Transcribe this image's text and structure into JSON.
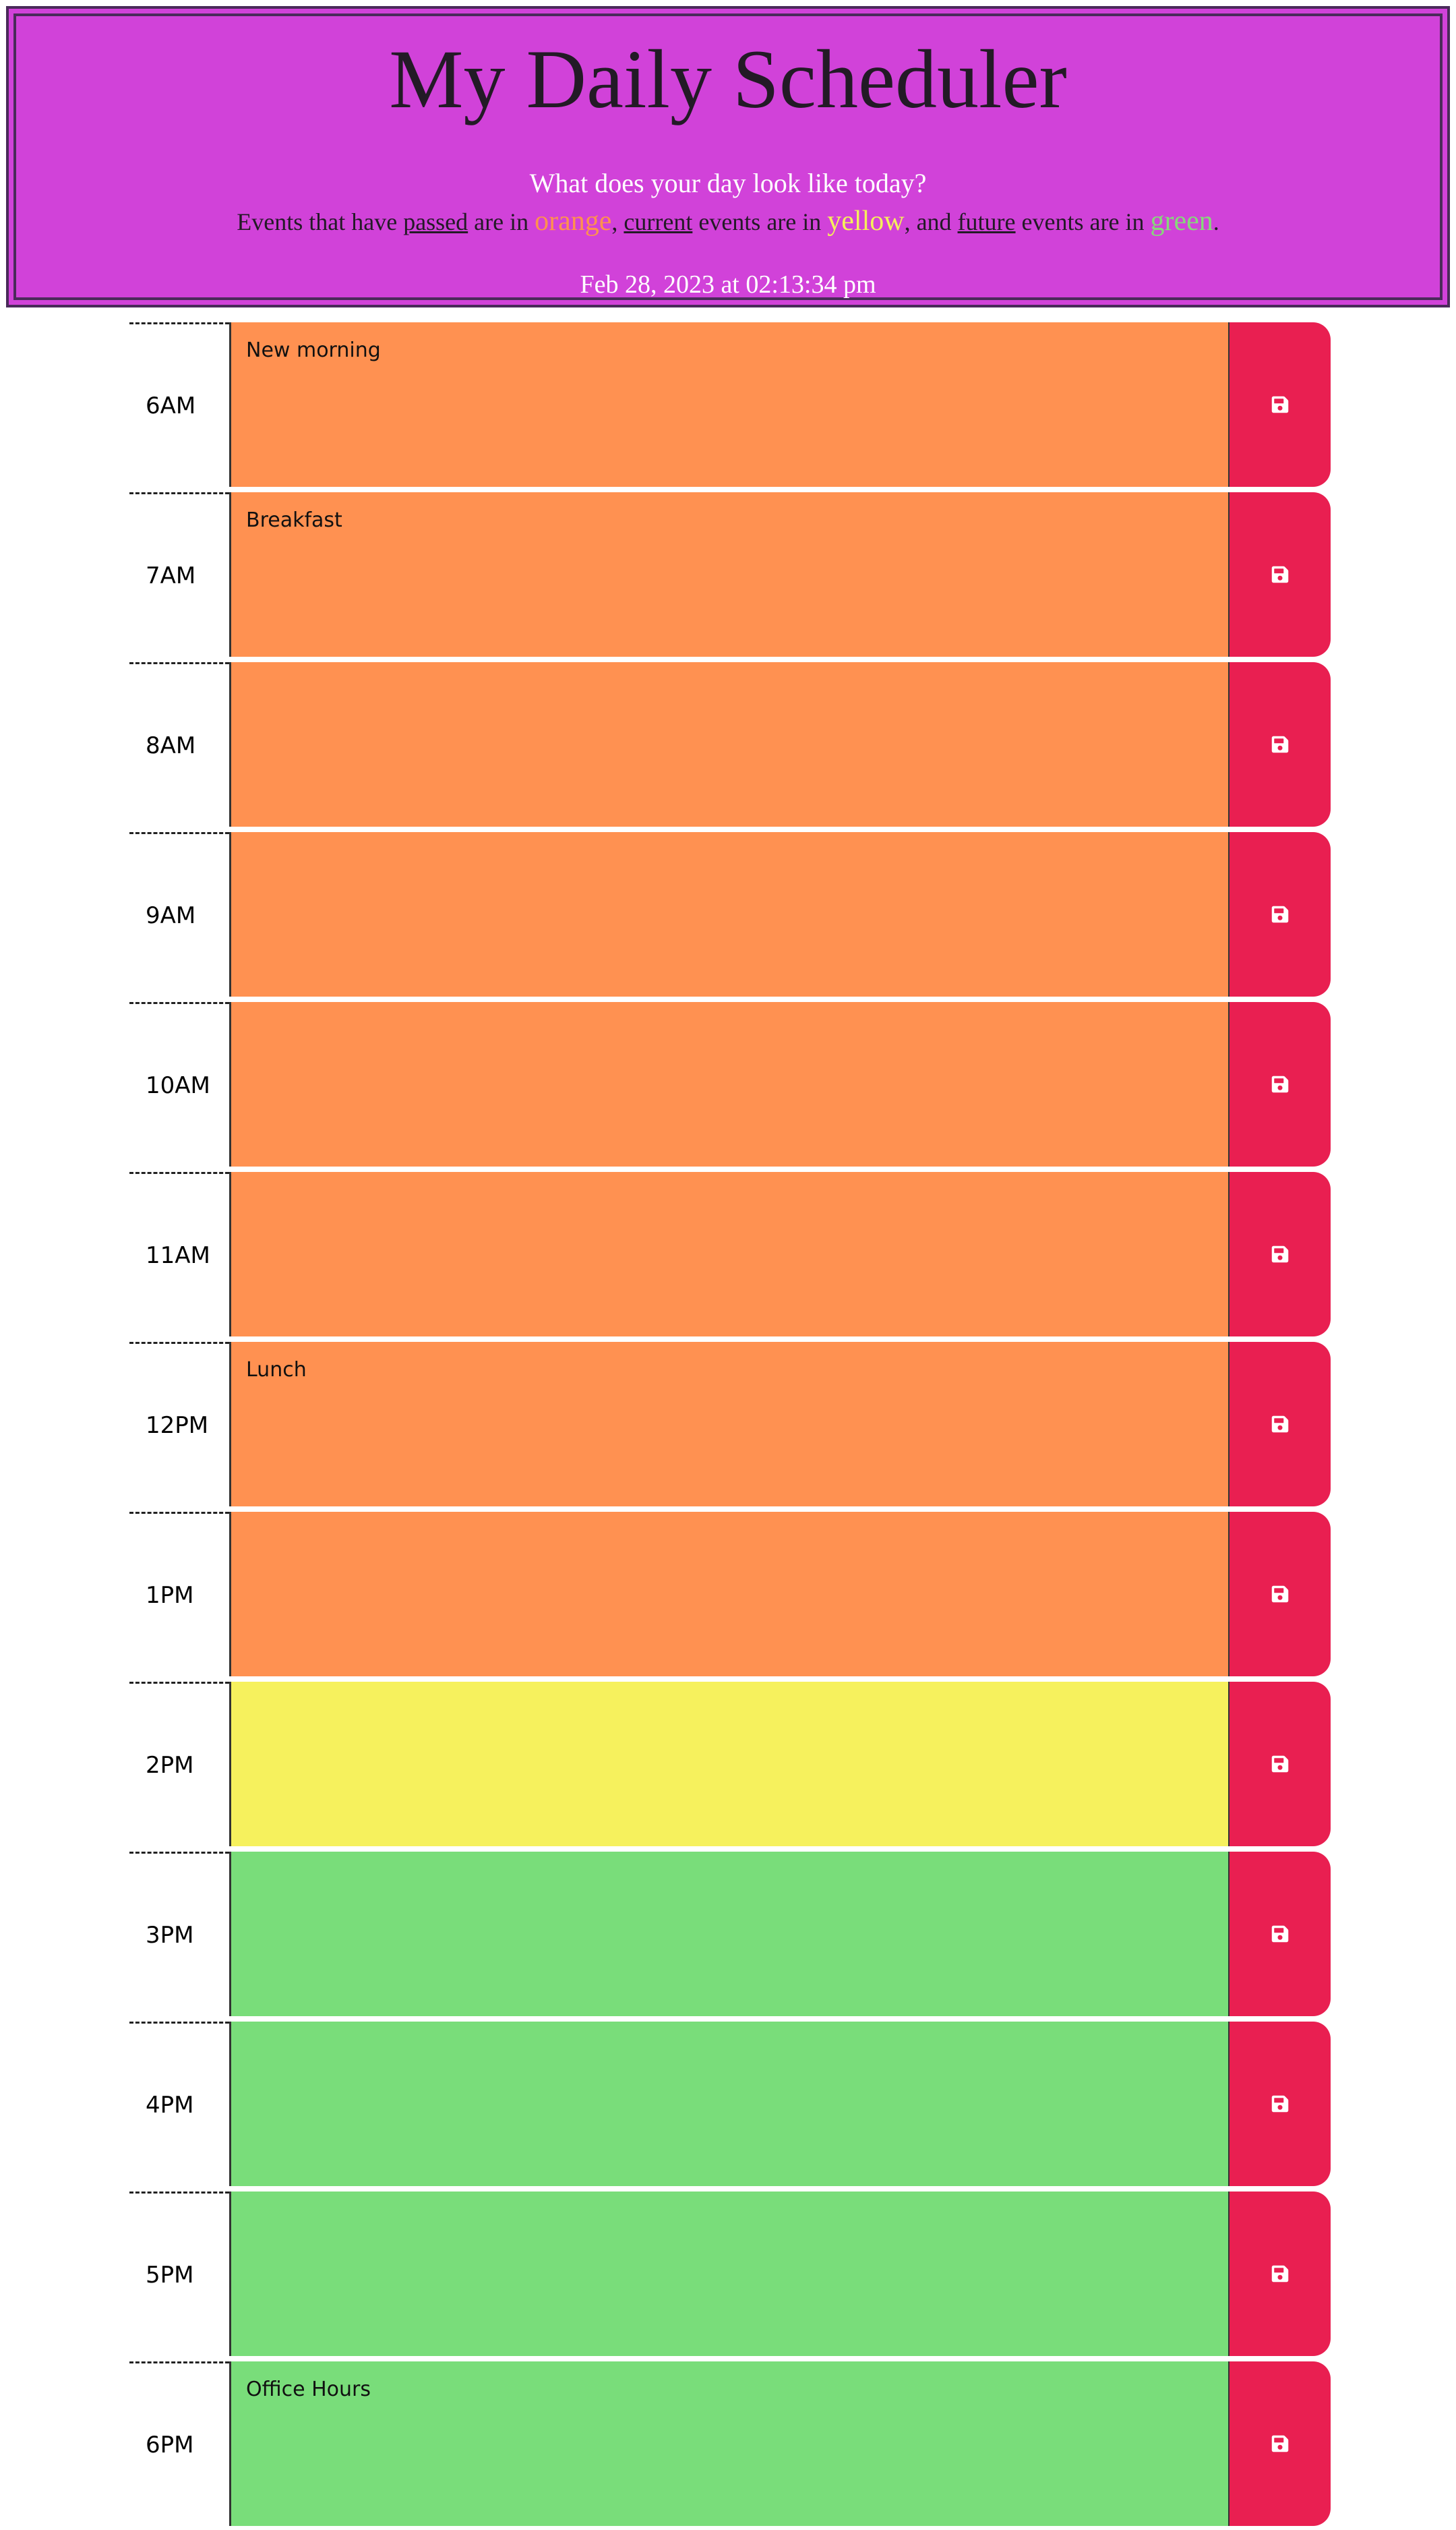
{
  "header": {
    "title": "My Daily Scheduler",
    "lead": "What does your day look like today?",
    "legend": {
      "t1": "Events that have ",
      "passed": "passed",
      "t2": " are in ",
      "orange": "orange",
      "t3": ", ",
      "current": "current",
      "t4": " events are in ",
      "yellow": "yellow",
      "t5": ", and ",
      "future": "future",
      "t6": " events are in ",
      "green": "green",
      "t7": "."
    },
    "datetime": "Feb 28, 2023 at 02:13:34 pm"
  },
  "colors": {
    "header_bg": "#d142d9",
    "past": "#ff9151",
    "present": "#f6f15d",
    "future": "#79dd7a",
    "save_button": "#e91f51"
  },
  "save_icon": "floppy-disk-icon",
  "schedule": [
    {
      "hour": "6AM",
      "text": "New morning",
      "status": "past"
    },
    {
      "hour": "7AM",
      "text": "Breakfast",
      "status": "past"
    },
    {
      "hour": "8AM",
      "text": "",
      "status": "past"
    },
    {
      "hour": "9AM",
      "text": "",
      "status": "past"
    },
    {
      "hour": "10AM",
      "text": "",
      "status": "past"
    },
    {
      "hour": "11AM",
      "text": "",
      "status": "past"
    },
    {
      "hour": "12PM",
      "text": "Lunch",
      "status": "past"
    },
    {
      "hour": "1PM",
      "text": "",
      "status": "past"
    },
    {
      "hour": "2PM",
      "text": "",
      "status": "present"
    },
    {
      "hour": "3PM",
      "text": "",
      "status": "future"
    },
    {
      "hour": "4PM",
      "text": "",
      "status": "future"
    },
    {
      "hour": "5PM",
      "text": "",
      "status": "future"
    },
    {
      "hour": "6PM",
      "text": "Office Hours",
      "status": "future"
    }
  ]
}
